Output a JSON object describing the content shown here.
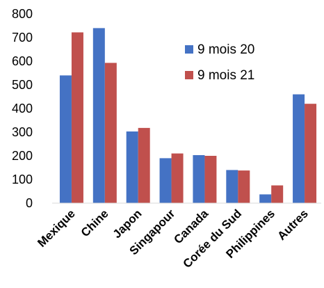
{
  "chart_data": {
    "type": "bar",
    "title": "",
    "xlabel": "",
    "ylabel": "",
    "ylim": [
      0,
      800
    ],
    "yticks": [
      0,
      100,
      200,
      300,
      400,
      500,
      600,
      700,
      800
    ],
    "grid": false,
    "legend_position": "top-right",
    "categories": [
      "Mexique",
      "Chine",
      "Japon",
      "Singapour",
      "Canada",
      "Corée du Sud",
      "Philippines",
      "Autres"
    ],
    "series": [
      {
        "name": "9 mois 20",
        "color": "#4472C4",
        "values": [
          540,
          740,
          303,
          190,
          203,
          140,
          37,
          460
        ]
      },
      {
        "name": "9 mois 21",
        "color": "#C0504D",
        "values": [
          722,
          593,
          318,
          210,
          200,
          138,
          75,
          420
        ]
      }
    ]
  }
}
